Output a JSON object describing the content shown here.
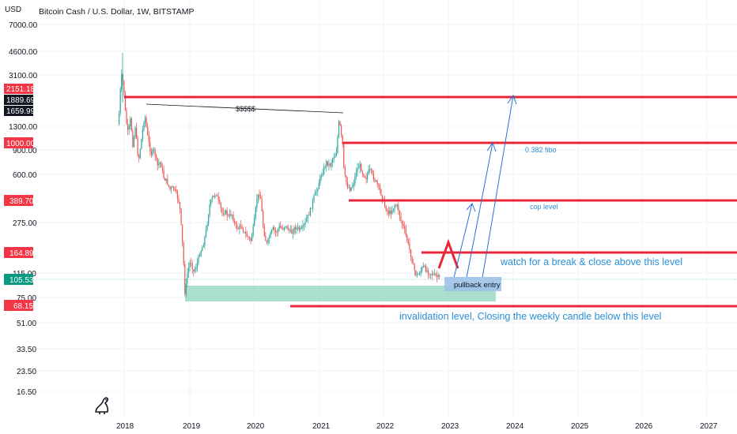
{
  "header": {
    "currency": "USD",
    "title": "Bitcoin Cash / U.S. Dollar, 1W, BITSTAMP"
  },
  "y_axis": {
    "ticks": [
      "7000.00",
      "4600.00",
      "3100.00",
      "1300.00",
      "900.00",
      "600.00",
      "275.00",
      "115.00",
      "75.00",
      "51.00",
      "33.50",
      "23.50",
      "16.50"
    ],
    "price_tags": [
      {
        "label": "2151.18",
        "bg": "#f23645"
      },
      {
        "label": "1889.69",
        "bg": "#131722"
      },
      {
        "label": "1659.99",
        "bg": "#131722"
      },
      {
        "label": "1000.00",
        "bg": "#f23645"
      },
      {
        "label": "389.70",
        "bg": "#f23645"
      },
      {
        "label": "164.89",
        "bg": "#f23645"
      },
      {
        "label": "105.53",
        "bg": "#089981"
      },
      {
        "label": "68.15",
        "bg": "#f23645"
      }
    ]
  },
  "x_axis": {
    "ticks": [
      "2018",
      "2019",
      "2020",
      "2021",
      "2022",
      "2023",
      "2024",
      "2025",
      "2026",
      "2027"
    ]
  },
  "annotations": {
    "dollars": "$$$$$",
    "fibo": "0.382 fibo",
    "cop": "cop level",
    "watch": "watch for a break & close above this level",
    "pullback": "pullback entry",
    "invalidation": "invalidation level, Closing the weekly candle below this level"
  },
  "colors": {
    "up": "#26a69a",
    "down": "#ef5350",
    "level_line": "#e8283a",
    "zone": "#8fd6bf",
    "pullback_box": "#9dc2e8",
    "arrow": "#2b6fd6",
    "annotation_text": "#2b8fd6"
  },
  "icons": {
    "logo": "tradingview-logo-icon"
  }
}
